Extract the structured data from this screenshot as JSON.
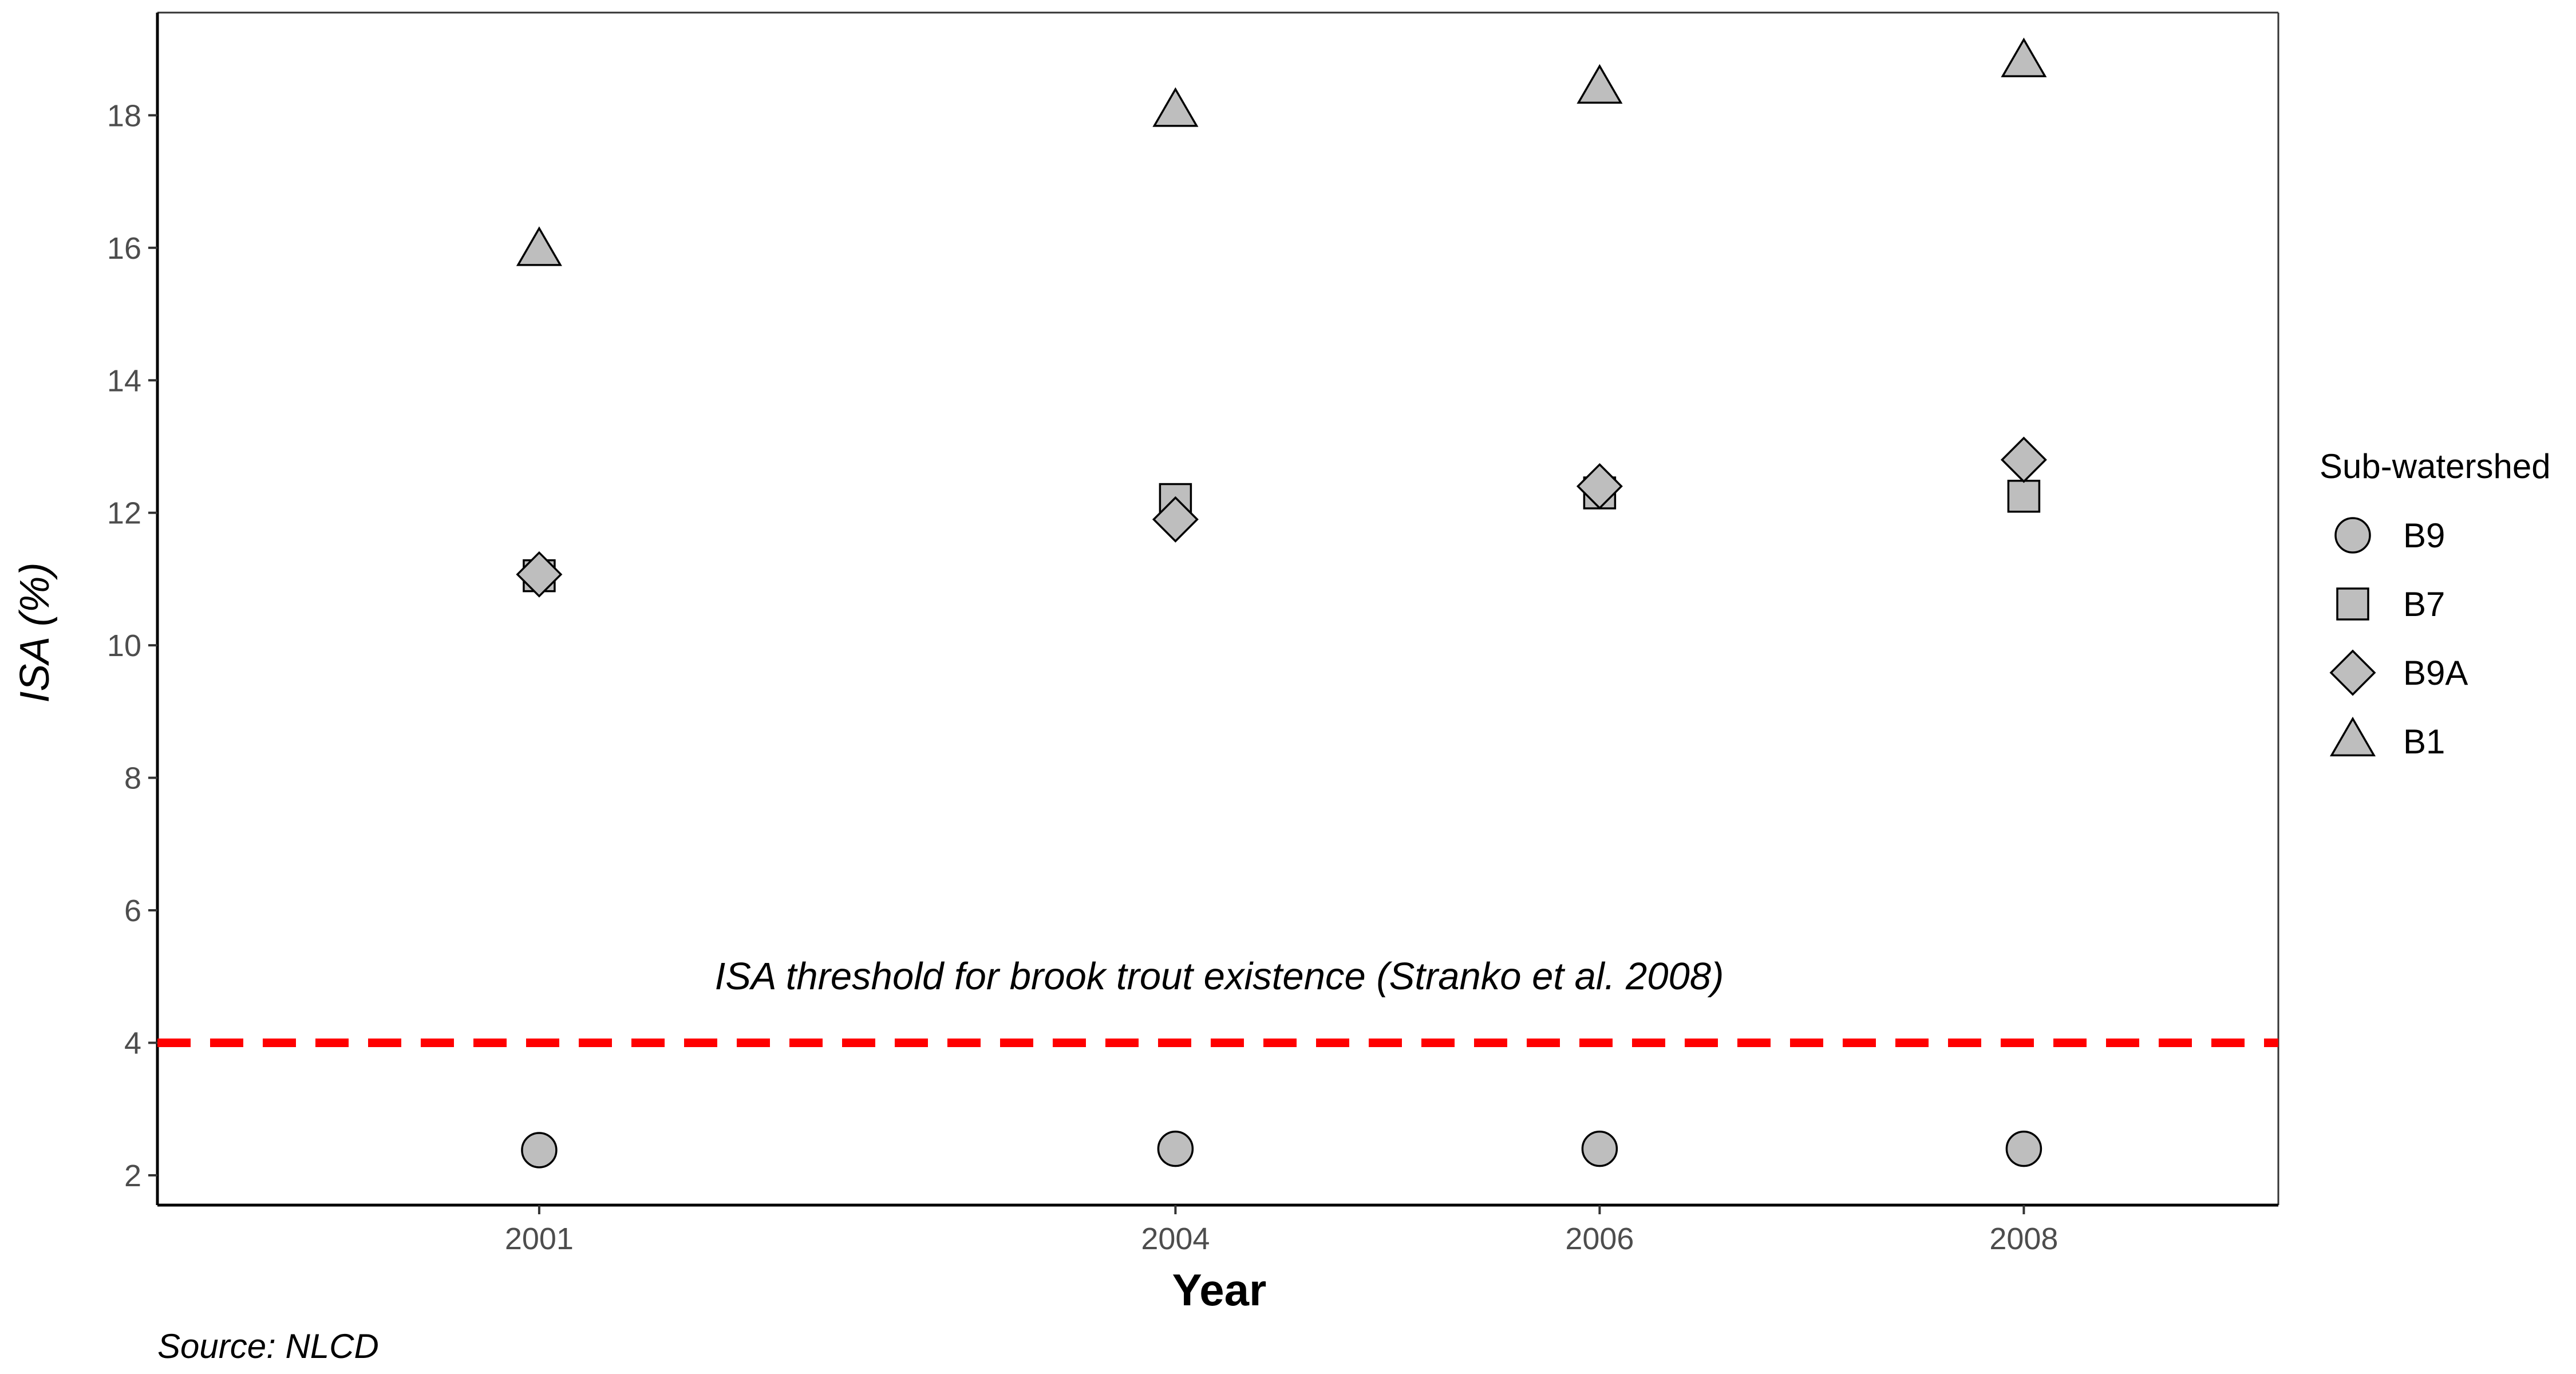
{
  "chart_data": {
    "type": "scatter",
    "title": "",
    "xlabel": "Year",
    "ylabel": "ISA (%)",
    "caption": "Source: NLCD",
    "categories": [
      "2001",
      "2004",
      "2006",
      "2008"
    ],
    "xlim": [
      1999.2,
      2009.2
    ],
    "ylim": [
      1.55,
      19.55
    ],
    "yticks": [
      2,
      4,
      6,
      8,
      10,
      12,
      14,
      16,
      18
    ],
    "grid": false,
    "legend": {
      "title": "Sub-watershed",
      "position": "right"
    },
    "series": [
      {
        "name": "B9",
        "marker": "circle",
        "values": [
          2.38,
          2.4,
          2.4,
          2.4
        ]
      },
      {
        "name": "B7",
        "marker": "square",
        "values": [
          11.05,
          12.2,
          12.3,
          12.25
        ]
      },
      {
        "name": "B9A",
        "marker": "diamond",
        "values": [
          11.07,
          11.9,
          12.4,
          12.8
        ]
      },
      {
        "name": "B1",
        "marker": "triangle",
        "values": [
          15.95,
          18.05,
          18.4,
          18.8
        ]
      }
    ],
    "reference_line": {
      "y": 4,
      "style": "dashed",
      "color": "#ff0000",
      "label": "ISA threshold for brook trout existence (Stranko et al. 2008)"
    },
    "colors": {
      "marker_fill": "#bebebe",
      "marker_stroke": "#000000",
      "tick_text": "#4d4d4d"
    }
  }
}
